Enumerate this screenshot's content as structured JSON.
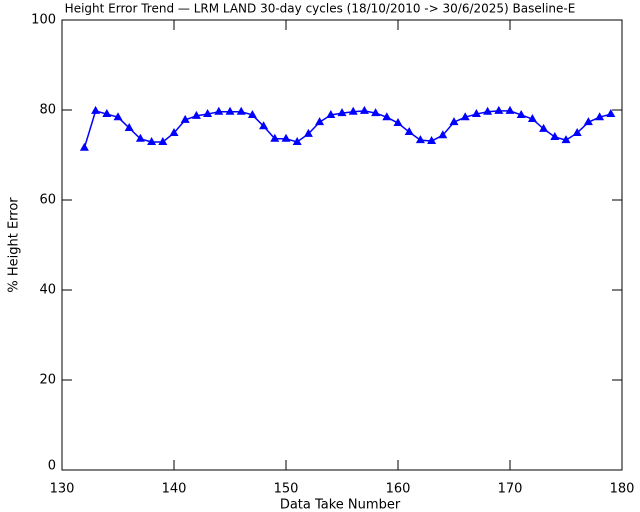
{
  "chart_data": {
    "type": "line",
    "title": "Height Error Trend — LRM LAND 30-day cycles (18/10/2010 -> 30/6/2025) Baseline-E",
    "x_label": "Data Take Number",
    "y_label": "% Height Error",
    "x": [
      132,
      133,
      134,
      135,
      136,
      137,
      138,
      139,
      140,
      141,
      142,
      143,
      144,
      145,
      146,
      147,
      148,
      149,
      150,
      151,
      152,
      153,
      154,
      155,
      156,
      157,
      158,
      159,
      160,
      161,
      162,
      163,
      164,
      165,
      166,
      167,
      168,
      169,
      170,
      171,
      172,
      173,
      174,
      175,
      176,
      177,
      178,
      179
    ],
    "series": [
      {
        "color": "#0000ff",
        "values": [
          71.6,
          79.8,
          79.1,
          78.4,
          76.0,
          73.6,
          72.9,
          72.9,
          74.9,
          77.8,
          78.7,
          79.1,
          79.6,
          79.6,
          79.6,
          78.9,
          76.4,
          73.6,
          73.6,
          72.9,
          74.7,
          77.3,
          78.9,
          79.3,
          79.6,
          79.8,
          79.3,
          78.4,
          77.1,
          75.1,
          73.3,
          73.1,
          74.4,
          77.3,
          78.4,
          79.1,
          79.6,
          79.8,
          79.8,
          78.9,
          78.0,
          75.8,
          74.0,
          73.3,
          74.9,
          77.3,
          78.4,
          79.1
        ]
      }
    ],
    "xlim": [
      130,
      180
    ],
    "xticks": [
      130,
      140,
      150,
      160,
      170,
      180
    ],
    "ylim": [
      0,
      100
    ],
    "yticks": [
      0,
      20,
      40,
      60,
      80,
      100
    ]
  }
}
